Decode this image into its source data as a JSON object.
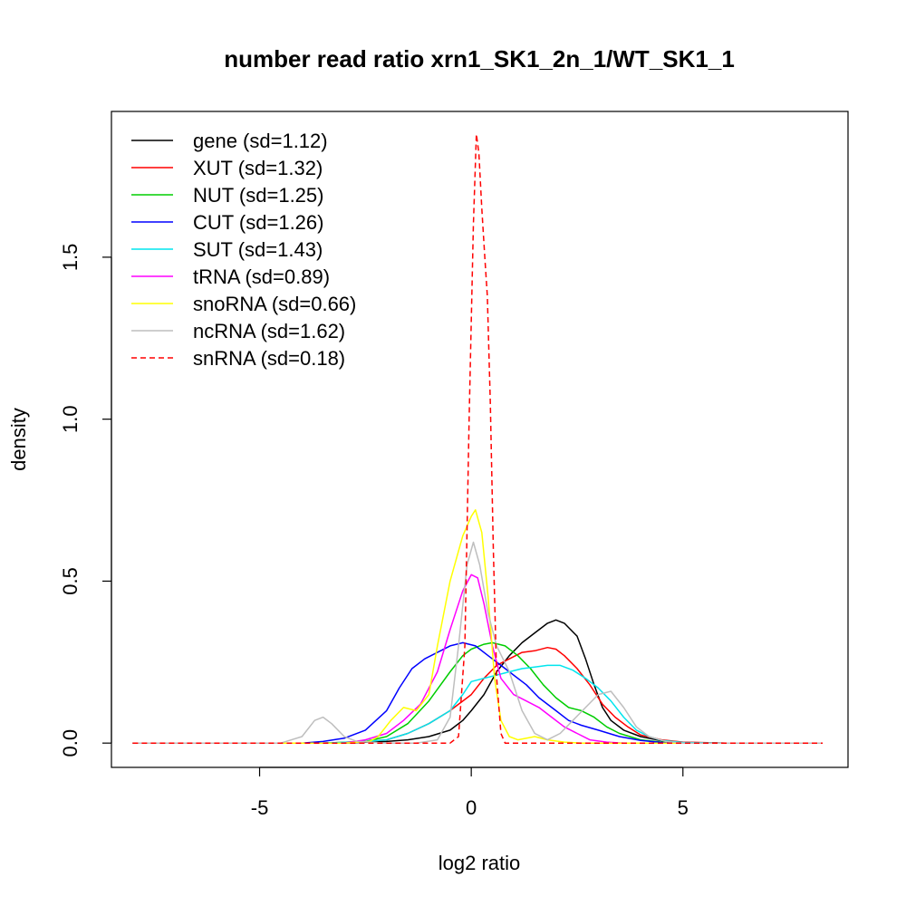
{
  "chart_data": {
    "type": "line",
    "title": "number read ratio xrn1_SK1_2n_1/WT_SK1_1",
    "xlabel": "log2 ratio",
    "ylabel": "density",
    "xlim": [
      -8.5,
      8.9
    ],
    "ylim": [
      -0.075,
      1.95
    ],
    "x_ticks": [
      -5,
      0,
      5
    ],
    "x_tick_labels": [
      "-5",
      "0",
      "5"
    ],
    "y_ticks": [
      0.0,
      0.5,
      1.0,
      1.5
    ],
    "y_tick_labels": [
      "0.0",
      "0.5",
      "1.0",
      "1.5"
    ],
    "grid": false,
    "legend_position": "top-left",
    "series": [
      {
        "name": "gene (sd=1.12)",
        "color": "#000000",
        "dash": "solid",
        "points": [
          [
            -8,
            0
          ],
          [
            -3,
            0
          ],
          [
            -2,
            0.005
          ],
          [
            -1.5,
            0.01
          ],
          [
            -1,
            0.02
          ],
          [
            -0.5,
            0.04
          ],
          [
            -0.2,
            0.07
          ],
          [
            0,
            0.1
          ],
          [
            0.3,
            0.15
          ],
          [
            0.6,
            0.22
          ],
          [
            0.9,
            0.27
          ],
          [
            1.2,
            0.31
          ],
          [
            1.5,
            0.34
          ],
          [
            1.8,
            0.37
          ],
          [
            2.0,
            0.38
          ],
          [
            2.2,
            0.37
          ],
          [
            2.5,
            0.33
          ],
          [
            2.7,
            0.26
          ],
          [
            2.9,
            0.18
          ],
          [
            3.1,
            0.11
          ],
          [
            3.3,
            0.07
          ],
          [
            3.6,
            0.04
          ],
          [
            4.0,
            0.02
          ],
          [
            4.5,
            0.007
          ],
          [
            5.0,
            0.002
          ],
          [
            6,
            0
          ],
          [
            8.3,
            0
          ]
        ]
      },
      {
        "name": "XUT (sd=1.32)",
        "color": "#ff0000",
        "dash": "solid",
        "points": [
          [
            -8,
            0
          ],
          [
            -3.5,
            0
          ],
          [
            -2.5,
            0.005
          ],
          [
            -2,
            0.01
          ],
          [
            -1.5,
            0.03
          ],
          [
            -1,
            0.06
          ],
          [
            -0.5,
            0.1
          ],
          [
            0,
            0.15
          ],
          [
            0.3,
            0.2
          ],
          [
            0.6,
            0.24
          ],
          [
            0.9,
            0.26
          ],
          [
            1.2,
            0.28
          ],
          [
            1.5,
            0.285
          ],
          [
            1.8,
            0.295
          ],
          [
            2.0,
            0.29
          ],
          [
            2.2,
            0.27
          ],
          [
            2.5,
            0.23
          ],
          [
            2.8,
            0.18
          ],
          [
            3.1,
            0.12
          ],
          [
            3.4,
            0.08
          ],
          [
            3.7,
            0.05
          ],
          [
            4.0,
            0.025
          ],
          [
            4.5,
            0.01
          ],
          [
            5.0,
            0.003
          ],
          [
            6,
            0
          ],
          [
            8.3,
            0
          ]
        ]
      },
      {
        "name": "NUT (sd=1.25)",
        "color": "#00cd00",
        "dash": "solid",
        "points": [
          [
            -8,
            0
          ],
          [
            -3.5,
            0
          ],
          [
            -2.5,
            0.005
          ],
          [
            -2,
            0.02
          ],
          [
            -1.5,
            0.06
          ],
          [
            -1,
            0.13
          ],
          [
            -0.5,
            0.22
          ],
          [
            -0.2,
            0.27
          ],
          [
            0,
            0.29
          ],
          [
            0.3,
            0.305
          ],
          [
            0.5,
            0.31
          ],
          [
            0.8,
            0.3
          ],
          [
            1.1,
            0.27
          ],
          [
            1.4,
            0.23
          ],
          [
            1.7,
            0.18
          ],
          [
            2.0,
            0.14
          ],
          [
            2.3,
            0.11
          ],
          [
            2.6,
            0.1
          ],
          [
            2.9,
            0.08
          ],
          [
            3.2,
            0.05
          ],
          [
            3.5,
            0.03
          ],
          [
            4.0,
            0.01
          ],
          [
            4.5,
            0.003
          ],
          [
            5.0,
            0
          ],
          [
            8.3,
            0
          ]
        ]
      },
      {
        "name": "CUT (sd=1.26)",
        "color": "#0000ff",
        "dash": "solid",
        "points": [
          [
            -8,
            0
          ],
          [
            -4,
            0
          ],
          [
            -3.5,
            0.005
          ],
          [
            -3,
            0.015
          ],
          [
            -2.5,
            0.04
          ],
          [
            -2,
            0.1
          ],
          [
            -1.7,
            0.17
          ],
          [
            -1.4,
            0.23
          ],
          [
            -1.1,
            0.26
          ],
          [
            -0.8,
            0.28
          ],
          [
            -0.5,
            0.3
          ],
          [
            -0.2,
            0.31
          ],
          [
            0.1,
            0.3
          ],
          [
            0.4,
            0.27
          ],
          [
            0.7,
            0.24
          ],
          [
            1.0,
            0.21
          ],
          [
            1.3,
            0.18
          ],
          [
            1.6,
            0.14
          ],
          [
            2.0,
            0.1
          ],
          [
            2.3,
            0.07
          ],
          [
            2.6,
            0.055
          ],
          [
            3.0,
            0.04
          ],
          [
            3.5,
            0.02
          ],
          [
            4.0,
            0.008
          ],
          [
            4.5,
            0.002
          ],
          [
            5,
            0
          ],
          [
            8.3,
            0
          ]
        ]
      },
      {
        "name": "SUT (sd=1.43)",
        "color": "#00e5ee",
        "dash": "solid",
        "points": [
          [
            -8,
            0
          ],
          [
            -3.5,
            0
          ],
          [
            -2.5,
            0.005
          ],
          [
            -2,
            0.01
          ],
          [
            -1.5,
            0.03
          ],
          [
            -1,
            0.06
          ],
          [
            -0.5,
            0.1
          ],
          [
            -0.2,
            0.15
          ],
          [
            0,
            0.19
          ],
          [
            0.3,
            0.2
          ],
          [
            0.6,
            0.21
          ],
          [
            0.9,
            0.22
          ],
          [
            1.2,
            0.23
          ],
          [
            1.5,
            0.235
          ],
          [
            1.8,
            0.24
          ],
          [
            2.1,
            0.24
          ],
          [
            2.4,
            0.225
          ],
          [
            2.7,
            0.2
          ],
          [
            3.0,
            0.17
          ],
          [
            3.3,
            0.13
          ],
          [
            3.6,
            0.08
          ],
          [
            3.9,
            0.04
          ],
          [
            4.2,
            0.02
          ],
          [
            4.5,
            0.008
          ],
          [
            5.0,
            0.002
          ],
          [
            6,
            0
          ],
          [
            8.3,
            0
          ]
        ]
      },
      {
        "name": "tRNA (sd=0.89)",
        "color": "#ff00ff",
        "dash": "solid",
        "points": [
          [
            -8,
            0
          ],
          [
            -3,
            0
          ],
          [
            -2.5,
            0.01
          ],
          [
            -2,
            0.03
          ],
          [
            -1.6,
            0.07
          ],
          [
            -1.2,
            0.12
          ],
          [
            -0.8,
            0.22
          ],
          [
            -0.5,
            0.35
          ],
          [
            -0.2,
            0.47
          ],
          [
            0,
            0.52
          ],
          [
            0.15,
            0.51
          ],
          [
            0.3,
            0.43
          ],
          [
            0.5,
            0.3
          ],
          [
            0.7,
            0.2
          ],
          [
            1.0,
            0.15
          ],
          [
            1.3,
            0.13
          ],
          [
            1.6,
            0.11
          ],
          [
            1.9,
            0.08
          ],
          [
            2.2,
            0.05
          ],
          [
            2.5,
            0.03
          ],
          [
            2.8,
            0.01
          ],
          [
            3.2,
            0.003
          ],
          [
            3.6,
            0
          ],
          [
            8.3,
            0
          ]
        ]
      },
      {
        "name": "snoRNA (sd=0.66)",
        "color": "#ffff00",
        "dash": "solid",
        "points": [
          [
            -8,
            0
          ],
          [
            -3,
            0
          ],
          [
            -2.4,
            0.005
          ],
          [
            -2.2,
            0.02
          ],
          [
            -1.9,
            0.07
          ],
          [
            -1.6,
            0.11
          ],
          [
            -1.3,
            0.1
          ],
          [
            -1.0,
            0.15
          ],
          [
            -0.8,
            0.3
          ],
          [
            -0.5,
            0.5
          ],
          [
            -0.2,
            0.64
          ],
          [
            0,
            0.7
          ],
          [
            0.1,
            0.72
          ],
          [
            0.25,
            0.65
          ],
          [
            0.4,
            0.45
          ],
          [
            0.55,
            0.2
          ],
          [
            0.7,
            0.07
          ],
          [
            0.9,
            0.02
          ],
          [
            1.1,
            0.01
          ],
          [
            1.5,
            0.02
          ],
          [
            1.8,
            0.01
          ],
          [
            2.2,
            0.003
          ],
          [
            2.6,
            0
          ],
          [
            8.3,
            0
          ]
        ]
      },
      {
        "name": "ncRNA (sd=1.62)",
        "color": "#bebebe",
        "dash": "solid",
        "points": [
          [
            -8,
            0
          ],
          [
            -4.5,
            0
          ],
          [
            -4.0,
            0.02
          ],
          [
            -3.7,
            0.07
          ],
          [
            -3.5,
            0.08
          ],
          [
            -3.3,
            0.06
          ],
          [
            -3.0,
            0.02
          ],
          [
            -2.7,
            0.005
          ],
          [
            -2.0,
            0
          ],
          [
            -1.3,
            0
          ],
          [
            -0.8,
            0.01
          ],
          [
            -0.5,
            0.08
          ],
          [
            -0.3,
            0.3
          ],
          [
            -0.1,
            0.55
          ],
          [
            0.05,
            0.62
          ],
          [
            0.2,
            0.55
          ],
          [
            0.4,
            0.4
          ],
          [
            0.6,
            0.3
          ],
          [
            0.9,
            0.22
          ],
          [
            1.2,
            0.1
          ],
          [
            1.5,
            0.03
          ],
          [
            1.8,
            0.01
          ],
          [
            2.1,
            0.03
          ],
          [
            2.4,
            0.07
          ],
          [
            2.7,
            0.11
          ],
          [
            3.0,
            0.15
          ],
          [
            3.3,
            0.16
          ],
          [
            3.6,
            0.11
          ],
          [
            3.9,
            0.05
          ],
          [
            4.2,
            0.02
          ],
          [
            4.6,
            0.005
          ],
          [
            5.0,
            0
          ],
          [
            8.3,
            0
          ]
        ]
      },
      {
        "name": "snRNA (sd=0.18)",
        "color": "#ff0000",
        "dash": "dashed",
        "points": [
          [
            -8,
            0
          ],
          [
            -0.5,
            0
          ],
          [
            -0.3,
            0.02
          ],
          [
            -0.15,
            0.3
          ],
          [
            -0.05,
            1.0
          ],
          [
            0.05,
            1.6
          ],
          [
            0.12,
            1.88
          ],
          [
            0.18,
            1.82
          ],
          [
            0.25,
            1.65
          ],
          [
            0.32,
            1.5
          ],
          [
            0.38,
            1.38
          ],
          [
            0.45,
            1.05
          ],
          [
            0.52,
            0.6
          ],
          [
            0.6,
            0.2
          ],
          [
            0.7,
            0.03
          ],
          [
            0.8,
            0
          ],
          [
            8.3,
            0
          ]
        ]
      }
    ]
  }
}
